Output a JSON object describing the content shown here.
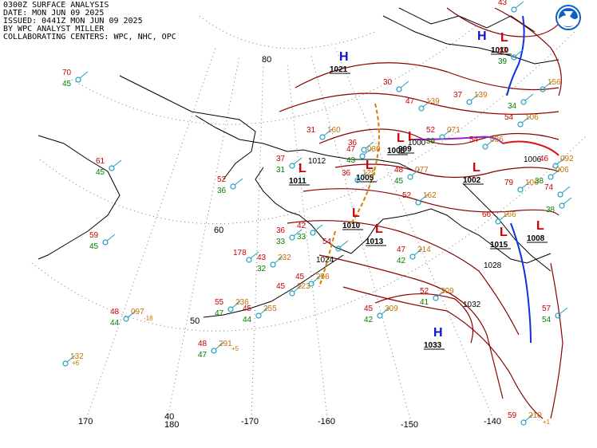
{
  "header": {
    "line1": "0300Z SURFACE ANALYSIS",
    "line2": "DATE: MON JUN 09 2025",
    "line3": "ISSUED: 0441Z MON JUN 09 2025",
    "line4": "BY WPC ANALYST MILLER",
    "line5": "COLLABORATING CENTERS: WPC, NHC, OPC"
  },
  "colors": {
    "isobar": "#8b0000",
    "coast": "#000000",
    "grid": "#777777",
    "high": "#1010d0",
    "low": "#cc0000",
    "cold_front": "#1030e0",
    "warm_front": "#e01010",
    "occluded_front": "#9a20c8",
    "trough": "#d08000",
    "temp": "#cc0000",
    "dewpoint": "#008000",
    "pressure": "#c87000",
    "station": "#20a0c0",
    "noaa_logo": "#1060c0"
  },
  "grid_labels": [
    {
      "id": "lat80",
      "text": "80"
    },
    {
      "id": "lat60",
      "text": "60"
    },
    {
      "id": "lat50",
      "text": "50"
    },
    {
      "id": "lat40",
      "text": "40"
    },
    {
      "id": "lon170",
      "text": "170"
    },
    {
      "id": "lon180",
      "text": "180"
    },
    {
      "id": "lon-170",
      "text": "-170"
    },
    {
      "id": "lon-160",
      "text": "-160"
    },
    {
      "id": "lon-150",
      "text": "-150"
    },
    {
      "id": "lon-140",
      "text": "-140"
    }
  ],
  "pressure_centers": [
    {
      "id": "h1",
      "type": "H",
      "value": "1021"
    },
    {
      "id": "h2",
      "type": "H",
      "value": ""
    },
    {
      "id": "h3",
      "type": "H",
      "value": "1033"
    },
    {
      "id": "l1",
      "type": "L",
      "value": "1011"
    },
    {
      "id": "l2",
      "type": "L",
      "value": "1008"
    },
    {
      "id": "l3",
      "type": "L",
      "value": "999"
    },
    {
      "id": "l4",
      "type": "L",
      "value": "1005"
    },
    {
      "id": "l5",
      "type": "L",
      "value": "1010"
    },
    {
      "id": "l6",
      "type": "L",
      "value": "1013"
    },
    {
      "id": "l7",
      "type": "L",
      "value": "1002"
    },
    {
      "id": "l8",
      "type": "L",
      "value": "1015"
    },
    {
      "id": "l9",
      "type": "L",
      "value": "1008"
    },
    {
      "id": "l10",
      "type": "L",
      "value": "1010"
    }
  ],
  "isobar_labels": [
    "1012",
    "1032",
    "1028",
    "1024",
    "1006",
    "1000"
  ],
  "stations": [
    {
      "id": "s1",
      "t": "70",
      "td": "45",
      "p": ""
    },
    {
      "id": "s2",
      "t": "61",
      "td": "45",
      "p": ""
    },
    {
      "id": "s3",
      "t": "59",
      "td": "45",
      "p": ""
    },
    {
      "id": "s4",
      "t": "52",
      "td": "36",
      "p": ""
    },
    {
      "id": "s5",
      "t": "37",
      "td": "31",
      "p": ""
    },
    {
      "id": "s6",
      "t": "31",
      "td": "",
      "p": "160"
    },
    {
      "id": "s7",
      "t": "36",
      "td": "33",
      "p": ""
    },
    {
      "id": "s8",
      "t": "42",
      "td": "33",
      "p": ""
    },
    {
      "id": "s9",
      "t": "36",
      "td": "",
      "p": ""
    },
    {
      "id": "s10",
      "t": "47",
      "td": "43",
      "p": "080"
    },
    {
      "id": "s11",
      "t": "36",
      "td": "",
      "p": "125"
    },
    {
      "id": "s12",
      "t": "48",
      "td": "45",
      "p": "077"
    },
    {
      "id": "s13",
      "t": "52",
      "td": "",
      "p": "162"
    },
    {
      "id": "s14",
      "t": "52",
      "td": "39",
      "p": "071"
    },
    {
      "id": "s15",
      "t": "54",
      "td": "",
      "p": "036"
    },
    {
      "id": "s16",
      "t": "47",
      "td": "",
      "p": "139"
    },
    {
      "id": "s17",
      "t": "37",
      "td": "",
      "p": "139"
    },
    {
      "id": "s18",
      "t": "54",
      "td": "",
      "p": "106"
    },
    {
      "id": "s19",
      "t": "79",
      "td": "",
      "p": "106"
    },
    {
      "id": "s20",
      "t": "74",
      "td": "",
      "p": ""
    },
    {
      "id": "s21",
      "t": "66",
      "td": "",
      "p": "166"
    },
    {
      "id": "s22",
      "t": "46",
      "td": "",
      "p": "092"
    },
    {
      "id": "s23",
      "t": "47",
      "td": "42",
      "p": "214"
    },
    {
      "id": "s24",
      "t": "54",
      "td": "",
      "p": ""
    },
    {
      "id": "s25",
      "t": "178",
      "td": "",
      "p": ""
    },
    {
      "id": "s26",
      "t": "43",
      "td": "32",
      "p": "232"
    },
    {
      "id": "s27",
      "t": "45",
      "td": "",
      "p": "223"
    },
    {
      "id": "s28",
      "t": "45",
      "td": "",
      "p": "256"
    },
    {
      "id": "s29",
      "t": "55",
      "td": "47",
      "p": "236"
    },
    {
      "id": "s30",
      "t": "45",
      "td": "44",
      "p": "255"
    },
    {
      "id": "s31",
      "t": "48",
      "td": "44",
      "p": "097"
    },
    {
      "id": "s32",
      "t": "48",
      "td": "47",
      "p": "291"
    },
    {
      "id": "s33",
      "t": "",
      "td": "",
      "p": "132"
    },
    {
      "id": "s34",
      "t": "52",
      "td": "41",
      "p": "309"
    },
    {
      "id": "s35",
      "t": "45",
      "td": "42",
      "p": "309"
    },
    {
      "id": "s36",
      "t": "57",
      "td": "54",
      "p": ""
    },
    {
      "id": "s37",
      "t": "59",
      "td": "",
      "p": "210"
    },
    {
      "id": "s38",
      "t": "43",
      "td": "39",
      "p": ""
    },
    {
      "id": "s39",
      "t": "30",
      "td": "",
      "p": ""
    },
    {
      "id": "s40",
      "t": "",
      "td": "34",
      "p": ""
    },
    {
      "id": "s41",
      "t": "",
      "td": "38",
      "p": "006"
    },
    {
      "id": "s42",
      "t": "",
      "td": "38",
      "p": ""
    },
    {
      "id": "s43",
      "t": "43",
      "td": "",
      "p": ""
    },
    {
      "id": "s44",
      "t": "",
      "td": "",
      "p": "156"
    }
  ],
  "tendencies": [
    "-18",
    "+6",
    "+5",
    "+1"
  ]
}
